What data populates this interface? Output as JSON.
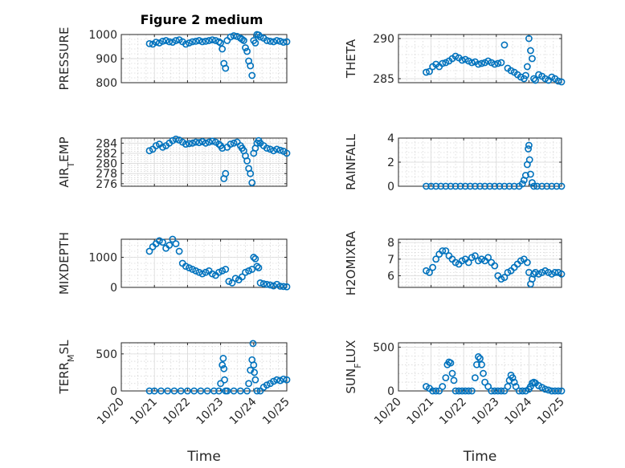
{
  "figure": {
    "title": "Figure 2 medium",
    "marker_color": "#0072BD",
    "axis_color": "#262626"
  },
  "chart_data": [
    {
      "type": "scatter",
      "ylabel": "PRESSURE",
      "xlabel": "",
      "ylim": [
        800,
        1000
      ],
      "yticks": [
        800,
        900,
        1000
      ],
      "grid": true,
      "xlim": [
        20,
        25
      ],
      "xticks": [
        20,
        21,
        22,
        23,
        24,
        25
      ],
      "xticklabels": [],
      "x": [
        20.85,
        20.95,
        21.05,
        21.15,
        21.25,
        21.35,
        21.45,
        21.55,
        21.65,
        21.75,
        21.85,
        21.95,
        22.05,
        22.15,
        22.25,
        22.35,
        22.45,
        22.55,
        22.65,
        22.75,
        22.85,
        22.95,
        23.0,
        23.05,
        23.1,
        23.15,
        23.2,
        23.3,
        23.4,
        23.5,
        23.6,
        23.65,
        23.7,
        23.75,
        23.8,
        23.85,
        23.9,
        23.95,
        24.0,
        24.05,
        24.1,
        24.15,
        24.2,
        24.3,
        24.4,
        24.5,
        24.6,
        24.7,
        24.8,
        24.9,
        25.0
      ],
      "y": [
        962,
        960,
        968,
        965,
        972,
        975,
        970,
        968,
        975,
        978,
        970,
        960,
        965,
        970,
        972,
        975,
        970,
        972,
        975,
        978,
        975,
        970,
        965,
        940,
        880,
        860,
        975,
        990,
        995,
        992,
        985,
        980,
        975,
        945,
        930,
        890,
        870,
        830,
        975,
        965,
        1000,
        998,
        990,
        985,
        975,
        972,
        970,
        975,
        972,
        968,
        970
      ]
    },
    {
      "type": "scatter",
      "ylabel": "THETA",
      "xlabel": "",
      "ylim": [
        284.5,
        290.5
      ],
      "yticks": [
        285,
        290
      ],
      "grid": true,
      "xlim": [
        20,
        25
      ],
      "xticks": [
        20,
        21,
        22,
        23,
        24,
        25
      ],
      "xticklabels": [],
      "x": [
        20.85,
        20.95,
        21.05,
        21.15,
        21.25,
        21.35,
        21.45,
        21.55,
        21.65,
        21.75,
        21.85,
        21.95,
        22.05,
        22.15,
        22.25,
        22.35,
        22.45,
        22.55,
        22.65,
        22.75,
        22.85,
        22.95,
        23.05,
        23.15,
        23.25,
        23.35,
        23.45,
        23.55,
        23.65,
        23.75,
        23.85,
        23.9,
        23.95,
        24.0,
        24.05,
        24.1,
        24.15,
        24.2,
        24.3,
        24.4,
        24.5,
        24.6,
        24.7,
        24.8,
        24.9,
        25.0
      ],
      "y": [
        285.8,
        285.9,
        286.5,
        286.8,
        286.5,
        286.9,
        287.0,
        287.2,
        287.5,
        287.8,
        287.6,
        287.3,
        287.4,
        287.2,
        287.0,
        287.1,
        286.8,
        286.9,
        287.0,
        287.2,
        287.0,
        286.8,
        286.9,
        287.0,
        289.2,
        286.3,
        286.0,
        285.8,
        285.5,
        285.2,
        285.0,
        285.4,
        286.5,
        290.0,
        288.5,
        287.5,
        285.0,
        284.8,
        285.5,
        285.3,
        285.0,
        284.8,
        285.2,
        285.0,
        284.7,
        284.6
      ]
    },
    {
      "type": "scatter",
      "ylabel": "AIR_TEMP",
      "xlabel": "",
      "ylim": [
        275.5,
        285
      ],
      "yticks": [
        276,
        278,
        280,
        282,
        284
      ],
      "grid": true,
      "xlim": [
        20,
        25
      ],
      "xticks": [
        20,
        21,
        22,
        23,
        24,
        25
      ],
      "xticklabels": [],
      "x": [
        20.85,
        20.95,
        21.05,
        21.15,
        21.25,
        21.35,
        21.45,
        21.55,
        21.65,
        21.75,
        21.85,
        21.95,
        22.05,
        22.15,
        22.25,
        22.35,
        22.45,
        22.55,
        22.65,
        22.75,
        22.85,
        22.95,
        23.0,
        23.05,
        23.1,
        23.15,
        23.2,
        23.3,
        23.4,
        23.5,
        23.6,
        23.65,
        23.7,
        23.75,
        23.8,
        23.85,
        23.9,
        23.95,
        24.0,
        24.05,
        24.1,
        24.15,
        24.2,
        24.3,
        24.4,
        24.5,
        24.6,
        24.7,
        24.8,
        24.9,
        25.0
      ],
      "y": [
        282.5,
        282.8,
        283.5,
        283.8,
        283.2,
        283.5,
        284.0,
        284.5,
        284.8,
        284.6,
        284.2,
        283.8,
        283.9,
        284.0,
        284.2,
        284.1,
        284.3,
        284.0,
        284.2,
        284.4,
        284.2,
        283.8,
        283.5,
        283.0,
        277.0,
        278.0,
        283.2,
        283.8,
        284.0,
        284.2,
        283.5,
        283.0,
        282.5,
        281.5,
        280.5,
        279.0,
        278.0,
        276.2,
        282.0,
        283.0,
        284.0,
        284.5,
        284.0,
        283.5,
        283.0,
        282.8,
        282.5,
        282.8,
        282.6,
        282.4,
        282.0
      ]
    },
    {
      "type": "scatter",
      "ylabel": "RAINFALL",
      "xlabel": "",
      "ylim": [
        0,
        4
      ],
      "yticks": [
        0,
        2,
        4
      ],
      "grid": true,
      "xlim": [
        20,
        25
      ],
      "xticks": [
        20,
        21,
        22,
        23,
        24,
        25
      ],
      "xticklabels": [],
      "x": [
        20.85,
        21.0,
        21.15,
        21.3,
        21.45,
        21.6,
        21.75,
        21.9,
        22.05,
        22.2,
        22.35,
        22.5,
        22.65,
        22.8,
        22.95,
        23.1,
        23.25,
        23.4,
        23.55,
        23.7,
        23.8,
        23.85,
        23.9,
        23.95,
        23.98,
        24.0,
        24.02,
        24.05,
        24.1,
        24.15,
        24.25,
        24.4,
        24.55,
        24.7,
        24.85,
        25.0
      ],
      "y": [
        0,
        0,
        0,
        0,
        0,
        0,
        0,
        0,
        0,
        0,
        0,
        0,
        0,
        0,
        0,
        0,
        0,
        0,
        0,
        0,
        0.2,
        0.5,
        0.9,
        1.8,
        3.1,
        3.4,
        2.2,
        1.0,
        0.3,
        0,
        0,
        0,
        0,
        0,
        0,
        0
      ]
    },
    {
      "type": "scatter",
      "ylabel": "MIXDEPTH",
      "xlabel": "",
      "ylim": [
        0,
        1600
      ],
      "yticks": [
        0,
        1000
      ],
      "grid": true,
      "xlim": [
        20,
        25
      ],
      "xticks": [
        20,
        21,
        22,
        23,
        24,
        25
      ],
      "xticklabels": [],
      "x": [
        20.85,
        20.95,
        21.05,
        21.15,
        21.25,
        21.35,
        21.45,
        21.55,
        21.65,
        21.75,
        21.85,
        21.95,
        22.05,
        22.15,
        22.25,
        22.35,
        22.45,
        22.55,
        22.65,
        22.75,
        22.85,
        22.95,
        23.05,
        23.15,
        23.25,
        23.35,
        23.45,
        23.55,
        23.65,
        23.75,
        23.85,
        23.95,
        24.0,
        24.05,
        24.1,
        24.15,
        24.2,
        24.3,
        24.4,
        24.5,
        24.6,
        24.7,
        24.8,
        24.9,
        25.0
      ],
      "y": [
        1200,
        1350,
        1450,
        1550,
        1500,
        1300,
        1400,
        1600,
        1450,
        1200,
        800,
        700,
        650,
        600,
        550,
        500,
        450,
        500,
        550,
        450,
        400,
        500,
        550,
        600,
        200,
        150,
        300,
        250,
        350,
        500,
        550,
        600,
        1000,
        950,
        700,
        650,
        150,
        120,
        100,
        80,
        50,
        100,
        40,
        30,
        20
      ]
    },
    {
      "type": "scatter",
      "ylabel": "H2OMIXRA",
      "xlabel": "",
      "ylim": [
        5.3,
        8.2
      ],
      "yticks": [
        6,
        7,
        8
      ],
      "grid": true,
      "xlim": [
        20,
        25
      ],
      "xticks": [
        20,
        21,
        22,
        23,
        24,
        25
      ],
      "xticklabels": [],
      "x": [
        20.85,
        20.95,
        21.05,
        21.15,
        21.25,
        21.35,
        21.45,
        21.55,
        21.65,
        21.75,
        21.85,
        21.95,
        22.05,
        22.15,
        22.25,
        22.35,
        22.45,
        22.55,
        22.65,
        22.75,
        22.85,
        22.95,
        23.05,
        23.15,
        23.25,
        23.35,
        23.45,
        23.55,
        23.65,
        23.75,
        23.85,
        23.95,
        24.0,
        24.05,
        24.1,
        24.15,
        24.2,
        24.3,
        24.4,
        24.5,
        24.6,
        24.7,
        24.8,
        24.9,
        25.0
      ],
      "y": [
        6.3,
        6.2,
        6.5,
        7.0,
        7.3,
        7.5,
        7.5,
        7.2,
        7.0,
        6.8,
        6.7,
        6.9,
        7.0,
        6.8,
        7.1,
        7.2,
        6.9,
        7.0,
        6.9,
        7.1,
        6.8,
        6.6,
        6.0,
        5.8,
        5.9,
        6.2,
        6.3,
        6.5,
        6.7,
        6.9,
        7.0,
        6.8,
        6.2,
        5.5,
        5.8,
        6.1,
        6.2,
        6.1,
        6.2,
        6.3,
        6.2,
        6.1,
        6.2,
        6.2,
        6.1
      ]
    },
    {
      "type": "scatter",
      "ylabel": "TERR_MSL",
      "xlabel": "Time",
      "ylim": [
        0,
        650
      ],
      "yticks": [
        0,
        500
      ],
      "grid": true,
      "xlim": [
        20,
        25
      ],
      "xticks": [
        20,
        21,
        22,
        23,
        24,
        25
      ],
      "xticklabels": [
        "10/20",
        "10/21",
        "10/22",
        "10/23",
        "10/24",
        "10/25"
      ],
      "x": [
        20.85,
        21.0,
        21.2,
        21.4,
        21.6,
        21.8,
        22.0,
        22.2,
        22.4,
        22.6,
        22.8,
        22.95,
        23.0,
        23.05,
        23.08,
        23.1,
        23.12,
        23.15,
        23.2,
        23.4,
        23.6,
        23.8,
        23.85,
        23.9,
        23.95,
        23.98,
        24.0,
        24.02,
        24.05,
        24.1,
        24.2,
        24.3,
        24.4,
        24.5,
        24.6,
        24.7,
        24.8,
        24.9,
        25.0
      ],
      "y": [
        0,
        0,
        0,
        0,
        0,
        0,
        0,
        0,
        0,
        0,
        0,
        0,
        100,
        350,
        440,
        300,
        150,
        0,
        0,
        0,
        0,
        0,
        100,
        280,
        420,
        640,
        350,
        250,
        150,
        0,
        0,
        50,
        80,
        100,
        130,
        150,
        140,
        160,
        150
      ]
    },
    {
      "type": "scatter",
      "ylabel": "SUN_FLUX",
      "xlabel": "Time",
      "ylim": [
        0,
        550
      ],
      "yticks": [
        0,
        500
      ],
      "grid": true,
      "xlim": [
        20,
        25
      ],
      "xticks": [
        20,
        21,
        22,
        23,
        24,
        25
      ],
      "xticklabels": [
        "10/20",
        "10/21",
        "10/22",
        "10/23",
        "10/24",
        "10/25"
      ],
      "x": [
        20.85,
        20.95,
        21.05,
        21.15,
        21.25,
        21.35,
        21.45,
        21.5,
        21.55,
        21.6,
        21.65,
        21.7,
        21.75,
        21.85,
        21.95,
        22.05,
        22.15,
        22.25,
        22.35,
        22.4,
        22.45,
        22.5,
        22.55,
        22.6,
        22.65,
        22.75,
        22.85,
        22.95,
        23.05,
        23.15,
        23.25,
        23.35,
        23.4,
        23.45,
        23.5,
        23.55,
        23.6,
        23.7,
        23.8,
        23.9,
        24.0,
        24.05,
        24.1,
        24.15,
        24.2,
        24.3,
        24.4,
        24.5,
        24.6,
        24.7,
        24.8,
        24.9,
        25.0
      ],
      "y": [
        50,
        30,
        0,
        0,
        0,
        50,
        150,
        300,
        330,
        320,
        200,
        120,
        0,
        0,
        0,
        0,
        0,
        0,
        150,
        300,
        390,
        370,
        300,
        200,
        100,
        50,
        0,
        0,
        0,
        0,
        0,
        50,
        120,
        180,
        150,
        100,
        50,
        0,
        0,
        0,
        20,
        50,
        90,
        100,
        90,
        60,
        40,
        20,
        10,
        0,
        0,
        0,
        0
      ]
    }
  ]
}
